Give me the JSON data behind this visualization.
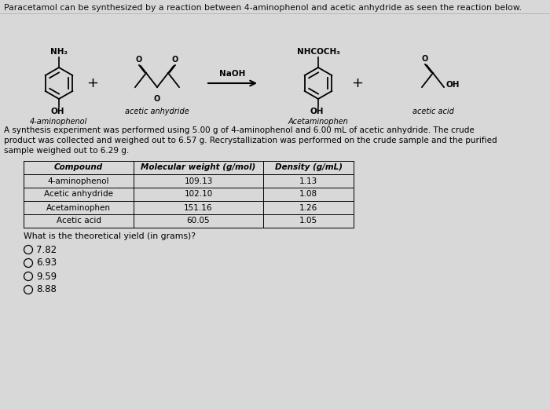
{
  "title_text": "Paracetamol can be synthesized by a reaction between 4-aminophenol and acetic anhydride as seen the reaction below.",
  "paragraph_line1": "A synthesis experiment was performed using 5.00 g of 4-aminophenol and 6.00 mL of acetic anhydride. The crude",
  "paragraph_line2": "product was collected and weighed out to 6.57 g. Recrystallization was performed on the crude sample and the purified",
  "paragraph_line3": "sample weighed out to 6.29 g.",
  "table_headers": [
    "Compound",
    "Molecular weight (g/mol)",
    "Density (g/mL)"
  ],
  "table_rows": [
    [
      "4-aminophenol",
      "109.13",
      "1.13"
    ],
    [
      "Acetic anhydride",
      "102.10",
      "1.08"
    ],
    [
      "Acetaminophen",
      "151.16",
      "1.26"
    ],
    [
      "Acetic acid",
      "60.05",
      "1.05"
    ]
  ],
  "question_text": "What is the theoretical yield (in grams)?",
  "choices": [
    "7.82",
    "6.93",
    "9.59",
    "8.88"
  ],
  "bg_color": "#d8d8d8",
  "text_color": "#000000",
  "r1_label": "NH₂",
  "r1_name": "4-aminophenol",
  "r1_oh": "OH",
  "r2_name": "acetic anhydride",
  "reagent": "NaOH",
  "prod_label": "NHCOCH₃",
  "prod_name": "Acetaminophen",
  "prod_oh": "OH",
  "byp_name": "acetic acid",
  "byp_oh": "OH",
  "byp_o": "O"
}
